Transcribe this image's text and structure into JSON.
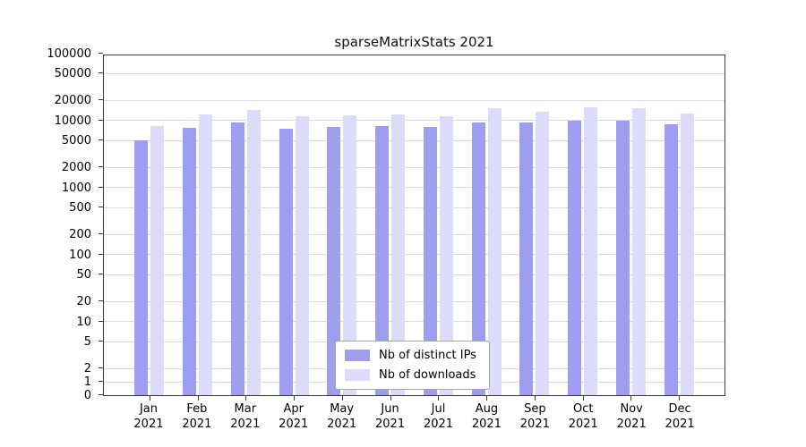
{
  "title": "sparseMatrixStats 2021",
  "chart_data": {
    "type": "bar",
    "title": "sparseMatrixStats 2021",
    "categories": [
      "Jan",
      "Feb",
      "Mar",
      "Apr",
      "May",
      "Jun",
      "Jul",
      "Aug",
      "Sep",
      "Oct",
      "Nov",
      "Dec"
    ],
    "category_year": "2021",
    "series": [
      {
        "name": "Nb of distinct IPs",
        "color": "#9e9ef0",
        "values": [
          5100,
          7700,
          9200,
          7400,
          7900,
          8300,
          8000,
          9400,
          9200,
          9900,
          9800,
          8700
        ]
      },
      {
        "name": "Nb of downloads",
        "color": "#dcdcf9",
        "values": [
          8100,
          12400,
          14100,
          11400,
          11800,
          12300,
          11700,
          15300,
          13500,
          15600,
          15100,
          12500
        ]
      }
    ],
    "y_ticks": [
      0,
      1,
      2,
      5,
      10,
      20,
      50,
      100,
      200,
      500,
      1000,
      2000,
      5000,
      10000,
      20000,
      50000,
      100000
    ],
    "y_scale": "symlog",
    "ylim": [
      0,
      100000
    ],
    "grid": "horizontal",
    "legend_position": "lower-center",
    "colors": {
      "bar_distinct_ips": "#9e9ef0",
      "bar_downloads": "#dcdcf9",
      "gridline": "#dbdbdb",
      "spine": "#3a3a3a",
      "background": "#ffffff"
    }
  }
}
